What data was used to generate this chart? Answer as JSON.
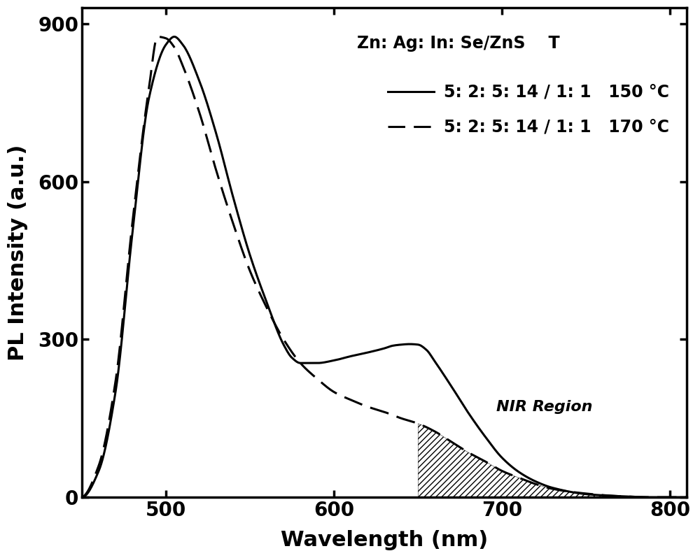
{
  "title": "",
  "xlabel": "Wavelength (nm)",
  "ylabel": "PL Intensity (a.u.)",
  "xlim": [
    450,
    810
  ],
  "ylim": [
    0,
    930
  ],
  "yticks": [
    0,
    300,
    600,
    900
  ],
  "xticks": [
    500,
    600,
    700,
    800
  ],
  "legend_header": "Zn: Ag: In: Se/ZnS    T",
  "legend_line1_label": "5: 2: 5: 14 / 1: 1   150 °C",
  "legend_line2_label": "5: 2: 5: 14 / 1: 1   170 °C",
  "nir_label": "NIR Region",
  "nir_start": 650,
  "background_color": "#ffffff",
  "line_color": "#000000",
  "hatch_pattern": "////",
  "font_size_label": 22,
  "font_size_tick": 20,
  "font_size_legend": 17,
  "font_size_nir": 16,
  "line_width": 2.2,
  "solid_key_wl": [
    450,
    460,
    470,
    480,
    490,
    500,
    505,
    510,
    520,
    530,
    540,
    550,
    560,
    570,
    575,
    580,
    590,
    600,
    610,
    620,
    630,
    635,
    640,
    645,
    650,
    655,
    660,
    670,
    680,
    690,
    700,
    710,
    720,
    730,
    750,
    770,
    790,
    810
  ],
  "solid_key_val": [
    0,
    50,
    200,
    500,
    760,
    860,
    875,
    860,
    790,
    690,
    570,
    460,
    370,
    290,
    265,
    255,
    255,
    260,
    268,
    275,
    283,
    288,
    290,
    291,
    290,
    280,
    258,
    210,
    160,
    115,
    75,
    48,
    30,
    18,
    6,
    2,
    0,
    0
  ],
  "dashed_key_wl": [
    450,
    460,
    470,
    480,
    490,
    495,
    500,
    505,
    510,
    520,
    530,
    540,
    550,
    560,
    570,
    580,
    590,
    600,
    610,
    620,
    630,
    640,
    650,
    660,
    670,
    680,
    690,
    700,
    710,
    720,
    730,
    750,
    770,
    790,
    810
  ],
  "dashed_key_val": [
    0,
    60,
    220,
    520,
    780,
    875,
    872,
    855,
    820,
    730,
    620,
    520,
    430,
    360,
    300,
    255,
    225,
    200,
    185,
    172,
    162,
    150,
    140,
    125,
    105,
    85,
    68,
    50,
    37,
    25,
    16,
    7,
    2,
    0,
    0
  ]
}
